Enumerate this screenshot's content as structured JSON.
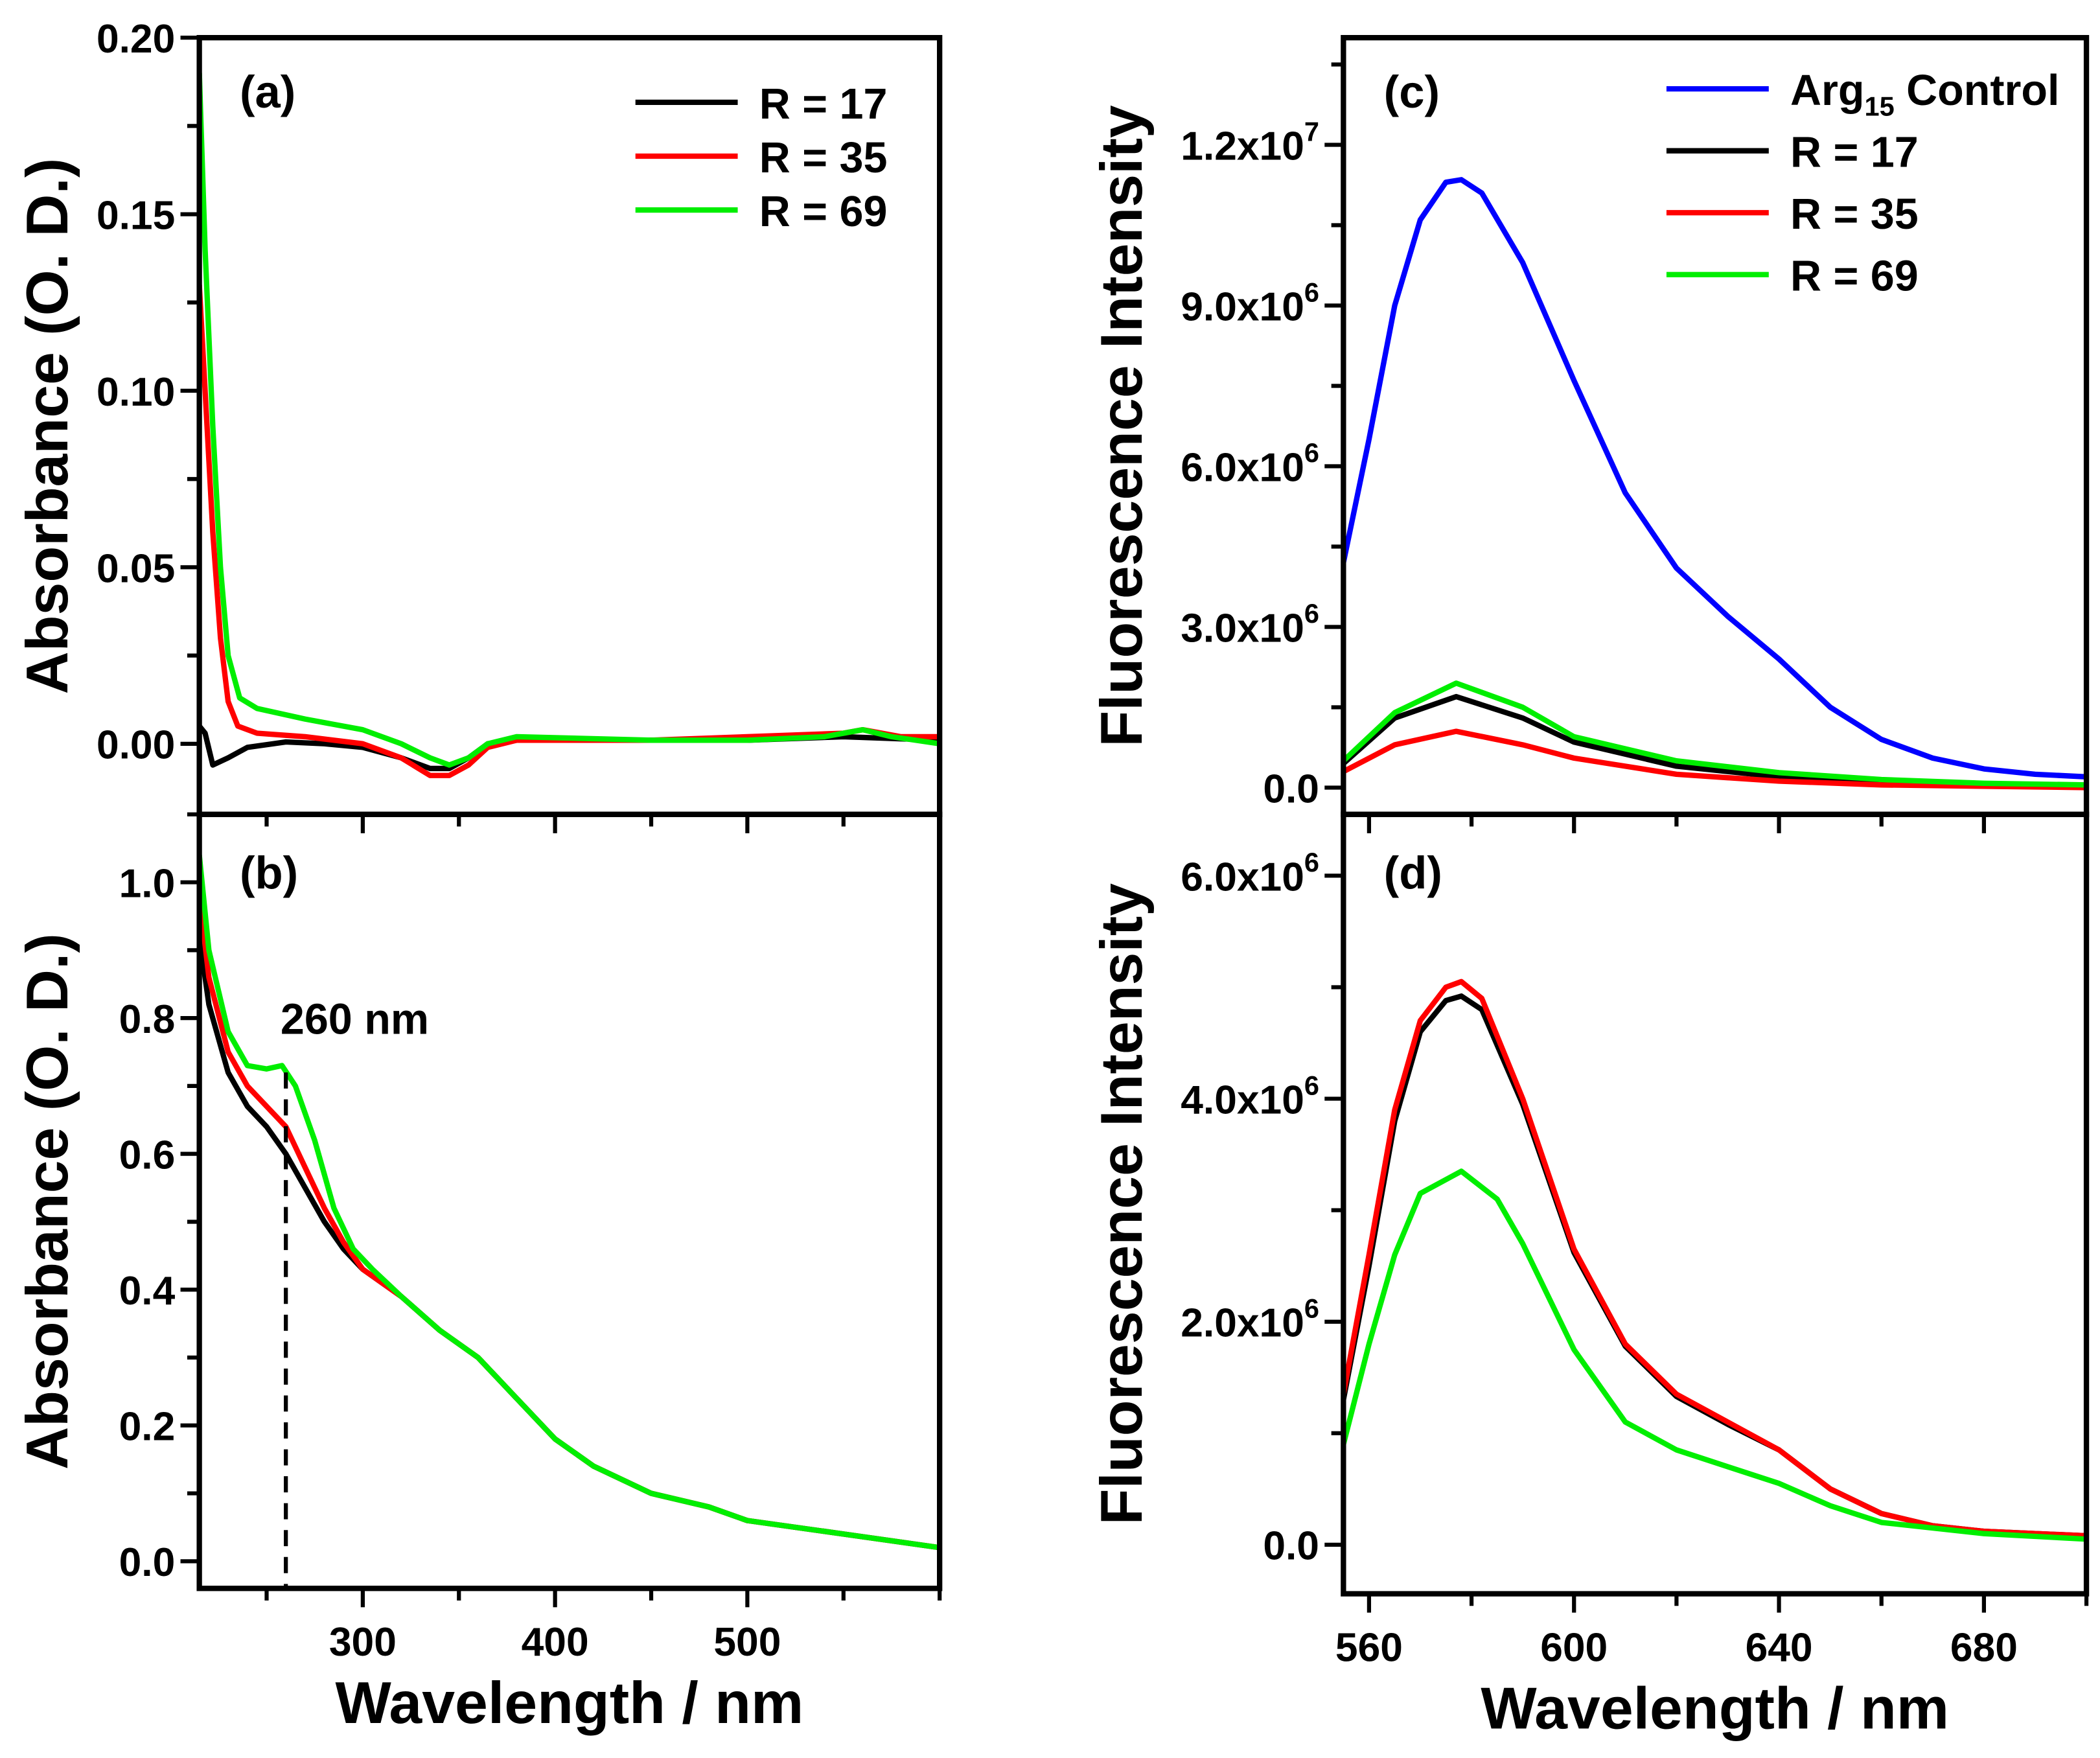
{
  "chart_data": [
    {
      "panel": "(a)",
      "type": "line",
      "xlabel": "",
      "ylabel": "Absorbance (O. D.)",
      "xlim": [
        215,
        600
      ],
      "ylim": [
        -0.02,
        0.2
      ],
      "xticks": [
        300,
        400,
        500
      ],
      "yticks": [
        0.0,
        0.05,
        0.1,
        0.15,
        0.2
      ],
      "ytick_labels": [
        "0.00",
        "0.05",
        "0.10",
        "0.15",
        "0.20"
      ],
      "legend_placement": "top-right",
      "series": [
        {
          "name": "R = 17",
          "color": "#000000",
          "x": [
            215,
            218,
            222,
            230,
            240,
            260,
            280,
            300,
            320,
            335,
            345,
            355,
            365,
            380,
            420,
            500,
            550,
            600
          ],
          "y": [
            0.005,
            0.003,
            -0.006,
            -0.004,
            -0.001,
            0.0005,
            0.0,
            -0.001,
            -0.004,
            -0.007,
            -0.007,
            -0.004,
            0.0,
            0.001,
            0.001,
            0.001,
            0.002,
            0.001
          ]
        },
        {
          "name": "R = 35",
          "color": "#ff0000",
          "x": [
            215,
            218,
            222,
            226,
            230,
            235,
            245,
            270,
            300,
            320,
            335,
            345,
            355,
            365,
            380,
            450,
            500,
            550,
            560,
            580,
            600
          ],
          "y": [
            0.13,
            0.1,
            0.06,
            0.03,
            0.012,
            0.005,
            0.003,
            0.002,
            0.0,
            -0.004,
            -0.009,
            -0.009,
            -0.006,
            -0.001,
            0.001,
            0.001,
            0.002,
            0.003,
            0.004,
            0.002,
            0.002
          ]
        },
        {
          "name": "R = 69",
          "color": "#00ee00",
          "x": [
            215,
            218,
            222,
            226,
            230,
            236,
            245,
            270,
            300,
            320,
            335,
            345,
            355,
            365,
            380,
            450,
            500,
            540,
            560,
            575,
            600
          ],
          "y": [
            0.19,
            0.14,
            0.09,
            0.05,
            0.025,
            0.013,
            0.01,
            0.007,
            0.004,
            0.0,
            -0.004,
            -0.006,
            -0.004,
            0.0,
            0.002,
            0.001,
            0.001,
            0.002,
            0.004,
            0.002,
            0.0
          ]
        }
      ]
    },
    {
      "panel": "(b)",
      "type": "line",
      "xlabel": "Wavelength / nm",
      "ylabel": "Absorbance (O. D.)",
      "xlim": [
        215,
        600
      ],
      "ylim": [
        -0.04,
        1.1
      ],
      "xticks": [
        300,
        400,
        500
      ],
      "xtick_labels": [
        "300",
        "400",
        "500"
      ],
      "yticks": [
        0.0,
        0.2,
        0.4,
        0.6,
        0.8,
        1.0
      ],
      "ytick_labels": [
        "0.0",
        "0.2",
        "0.4",
        "0.6",
        "0.8",
        "1.0"
      ],
      "annotation": {
        "text": "260 nm",
        "x": 260
      },
      "series": [
        {
          "name": "R = 17",
          "color": "#000000",
          "x": [
            215,
            220,
            230,
            240,
            250,
            260,
            270,
            280,
            290,
            300,
            320,
            340,
            360,
            380,
            400,
            420,
            450,
            480,
            500,
            550,
            600
          ],
          "y": [
            0.92,
            0.82,
            0.72,
            0.67,
            0.64,
            0.6,
            0.55,
            0.5,
            0.46,
            0.43,
            0.39,
            0.34,
            0.3,
            0.24,
            0.18,
            0.14,
            0.1,
            0.08,
            0.06,
            0.04,
            0.02
          ]
        },
        {
          "name": "R = 35",
          "color": "#ff0000",
          "x": [
            215,
            220,
            230,
            240,
            250,
            260,
            270,
            280,
            290,
            300,
            320,
            340,
            360,
            380,
            400,
            420,
            450,
            480,
            500,
            550,
            600
          ],
          "y": [
            0.98,
            0.86,
            0.75,
            0.7,
            0.67,
            0.64,
            0.58,
            0.52,
            0.47,
            0.43,
            0.39,
            0.34,
            0.3,
            0.24,
            0.18,
            0.14,
            0.1,
            0.08,
            0.06,
            0.04,
            0.02
          ]
        },
        {
          "name": "R = 69",
          "color": "#00ee00",
          "x": [
            215,
            220,
            230,
            240,
            250,
            258,
            265,
            275,
            285,
            295,
            305,
            320,
            340,
            360,
            380,
            400,
            420,
            450,
            480,
            500,
            550,
            600
          ],
          "y": [
            1.04,
            0.9,
            0.78,
            0.73,
            0.725,
            0.73,
            0.7,
            0.62,
            0.52,
            0.46,
            0.43,
            0.39,
            0.34,
            0.3,
            0.24,
            0.18,
            0.14,
            0.1,
            0.08,
            0.06,
            0.04,
            0.02
          ]
        }
      ]
    },
    {
      "panel": "(c)",
      "type": "line",
      "xlabel": "",
      "ylabel": "Fluorescence Intensity",
      "xlim": [
        555,
        700
      ],
      "ylim": [
        -500000,
        14000000
      ],
      "xticks": [
        560,
        600,
        640,
        680
      ],
      "yticks": [
        0,
        3000000,
        6000000,
        9000000,
        12000000
      ],
      "ytick_labels": [
        {
          "m": "0.0",
          "e": ""
        },
        {
          "m": "3.0x10",
          "e": "6"
        },
        {
          "m": "6.0x10",
          "e": "6"
        },
        {
          "m": "9.0x10",
          "e": "6"
        },
        {
          "m": "1.2x10",
          "e": "7"
        }
      ],
      "legend_placement": "top-right",
      "series": [
        {
          "name": "Arg",
          "name_sub": "15",
          "name_rest": " Control",
          "color": "#0000ff",
          "x": [
            555,
            560,
            565,
            570,
            575,
            578,
            582,
            590,
            600,
            610,
            620,
            630,
            640,
            650,
            660,
            670,
            680,
            690,
            700
          ],
          "y": [
            4200000,
            6500000,
            9000000,
            10600000,
            11300000,
            11350000,
            11100000,
            9800000,
            7600000,
            5500000,
            4100000,
            3200000,
            2400000,
            1500000,
            900000,
            550000,
            350000,
            250000,
            200000
          ]
        },
        {
          "name": "R = 17",
          "color": "#000000",
          "x": [
            555,
            565,
            577,
            590,
            600,
            620,
            640,
            660,
            680,
            700
          ],
          "y": [
            450000,
            1300000,
            1700000,
            1300000,
            850000,
            400000,
            200000,
            100000,
            50000,
            30000
          ]
        },
        {
          "name": "R = 35",
          "color": "#ff0000",
          "x": [
            555,
            565,
            577,
            590,
            600,
            620,
            640,
            660,
            700
          ],
          "y": [
            300000,
            800000,
            1050000,
            800000,
            550000,
            250000,
            120000,
            50000,
            0
          ]
        },
        {
          "name": "R = 69",
          "color": "#00ee00",
          "x": [
            555,
            565,
            577,
            590,
            600,
            620,
            640,
            660,
            680,
            700
          ],
          "y": [
            500000,
            1400000,
            1950000,
            1500000,
            950000,
            500000,
            280000,
            150000,
            80000,
            50000
          ]
        }
      ]
    },
    {
      "panel": "(d)",
      "type": "line",
      "xlabel": "Wavelength / nm",
      "ylabel": "Fluorescence Intensity",
      "xlim": [
        555,
        700
      ],
      "ylim": [
        -440000,
        6550000
      ],
      "xticks": [
        560,
        600,
        640,
        680
      ],
      "xtick_labels": [
        "560",
        "600",
        "640",
        "680"
      ],
      "yticks": [
        0,
        2000000,
        4000000,
        6000000
      ],
      "ytick_labels": [
        {
          "m": "0.0",
          "e": ""
        },
        {
          "m": "2.0x10",
          "e": "6"
        },
        {
          "m": "4.0x10",
          "e": "6"
        },
        {
          "m": "6.0x10",
          "e": "6"
        }
      ],
      "series": [
        {
          "name": "R = 17",
          "color": "#000000",
          "x": [
            555,
            560,
            565,
            570,
            575,
            578,
            582,
            590,
            600,
            610,
            620,
            630,
            640,
            650,
            660,
            670,
            680,
            700
          ],
          "y": [
            1300000,
            2500000,
            3800000,
            4600000,
            4880000,
            4920000,
            4800000,
            3950000,
            2620000,
            1780000,
            1330000,
            1080000,
            850000,
            500000,
            280000,
            170000,
            120000,
            80000
          ]
        },
        {
          "name": "R = 35",
          "color": "#ff0000",
          "x": [
            555,
            560,
            565,
            570,
            575,
            578,
            582,
            590,
            600,
            610,
            620,
            630,
            640,
            650,
            660,
            670,
            680,
            700
          ],
          "y": [
            1350000,
            2600000,
            3900000,
            4700000,
            5000000,
            5050000,
            4900000,
            4000000,
            2650000,
            1800000,
            1350000,
            1100000,
            850000,
            500000,
            280000,
            170000,
            120000,
            80000
          ]
        },
        {
          "name": "R = 69",
          "color": "#00ee00",
          "x": [
            555,
            560,
            565,
            570,
            578,
            585,
            590,
            600,
            610,
            620,
            630,
            640,
            650,
            660,
            680,
            700
          ],
          "y": [
            900000,
            1800000,
            2600000,
            3150000,
            3350000,
            3100000,
            2700000,
            1750000,
            1100000,
            850000,
            700000,
            550000,
            350000,
            200000,
            100000,
            50000
          ]
        }
      ]
    }
  ]
}
